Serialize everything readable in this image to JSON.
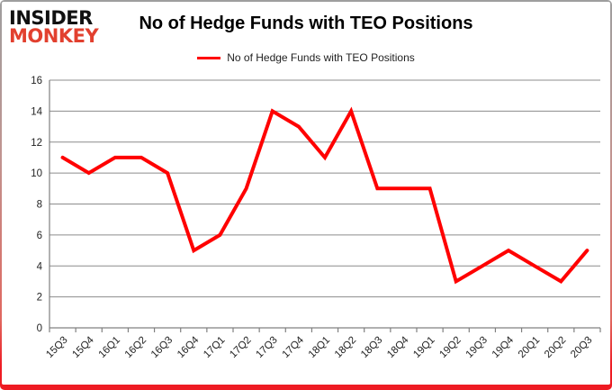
{
  "header": {
    "logo": {
      "line1": "INSIDER",
      "line2": "MONKEY",
      "line1_color": "#111111",
      "line2_color": "#e2402f"
    },
    "title": "No of Hedge Funds with TEO Positions",
    "legend": {
      "swatch_color": "#ff0000",
      "label": "No of Hedge Funds with TEO Positions"
    }
  },
  "chart_data": {
    "type": "line",
    "title": "No of Hedge Funds with TEO Positions",
    "categories": [
      "15Q3",
      "15Q4",
      "16Q1",
      "16Q2",
      "16Q3",
      "16Q4",
      "17Q1",
      "17Q2",
      "17Q3",
      "17Q4",
      "18Q1",
      "18Q2",
      "18Q3",
      "18Q4",
      "19Q1",
      "19Q2",
      "19Q3",
      "19Q4",
      "20Q1",
      "20Q2",
      "20Q3"
    ],
    "series": [
      {
        "name": "No of Hedge Funds with TEO Positions",
        "color": "#ff0000",
        "values": [
          11,
          10,
          11,
          11,
          10,
          5,
          6,
          9,
          14,
          13,
          11,
          14,
          9,
          9,
          9,
          3,
          4,
          5,
          4,
          3,
          5
        ]
      }
    ],
    "xlabel": "",
    "ylabel": "",
    "ylim": [
      0,
      16
    ],
    "ytick_step": 2,
    "grid": "horizontal",
    "grid_color": "#8c8c8c",
    "axis_color": "#808080",
    "tick_label_color": "#1f1f1f",
    "legend_position": "top"
  }
}
